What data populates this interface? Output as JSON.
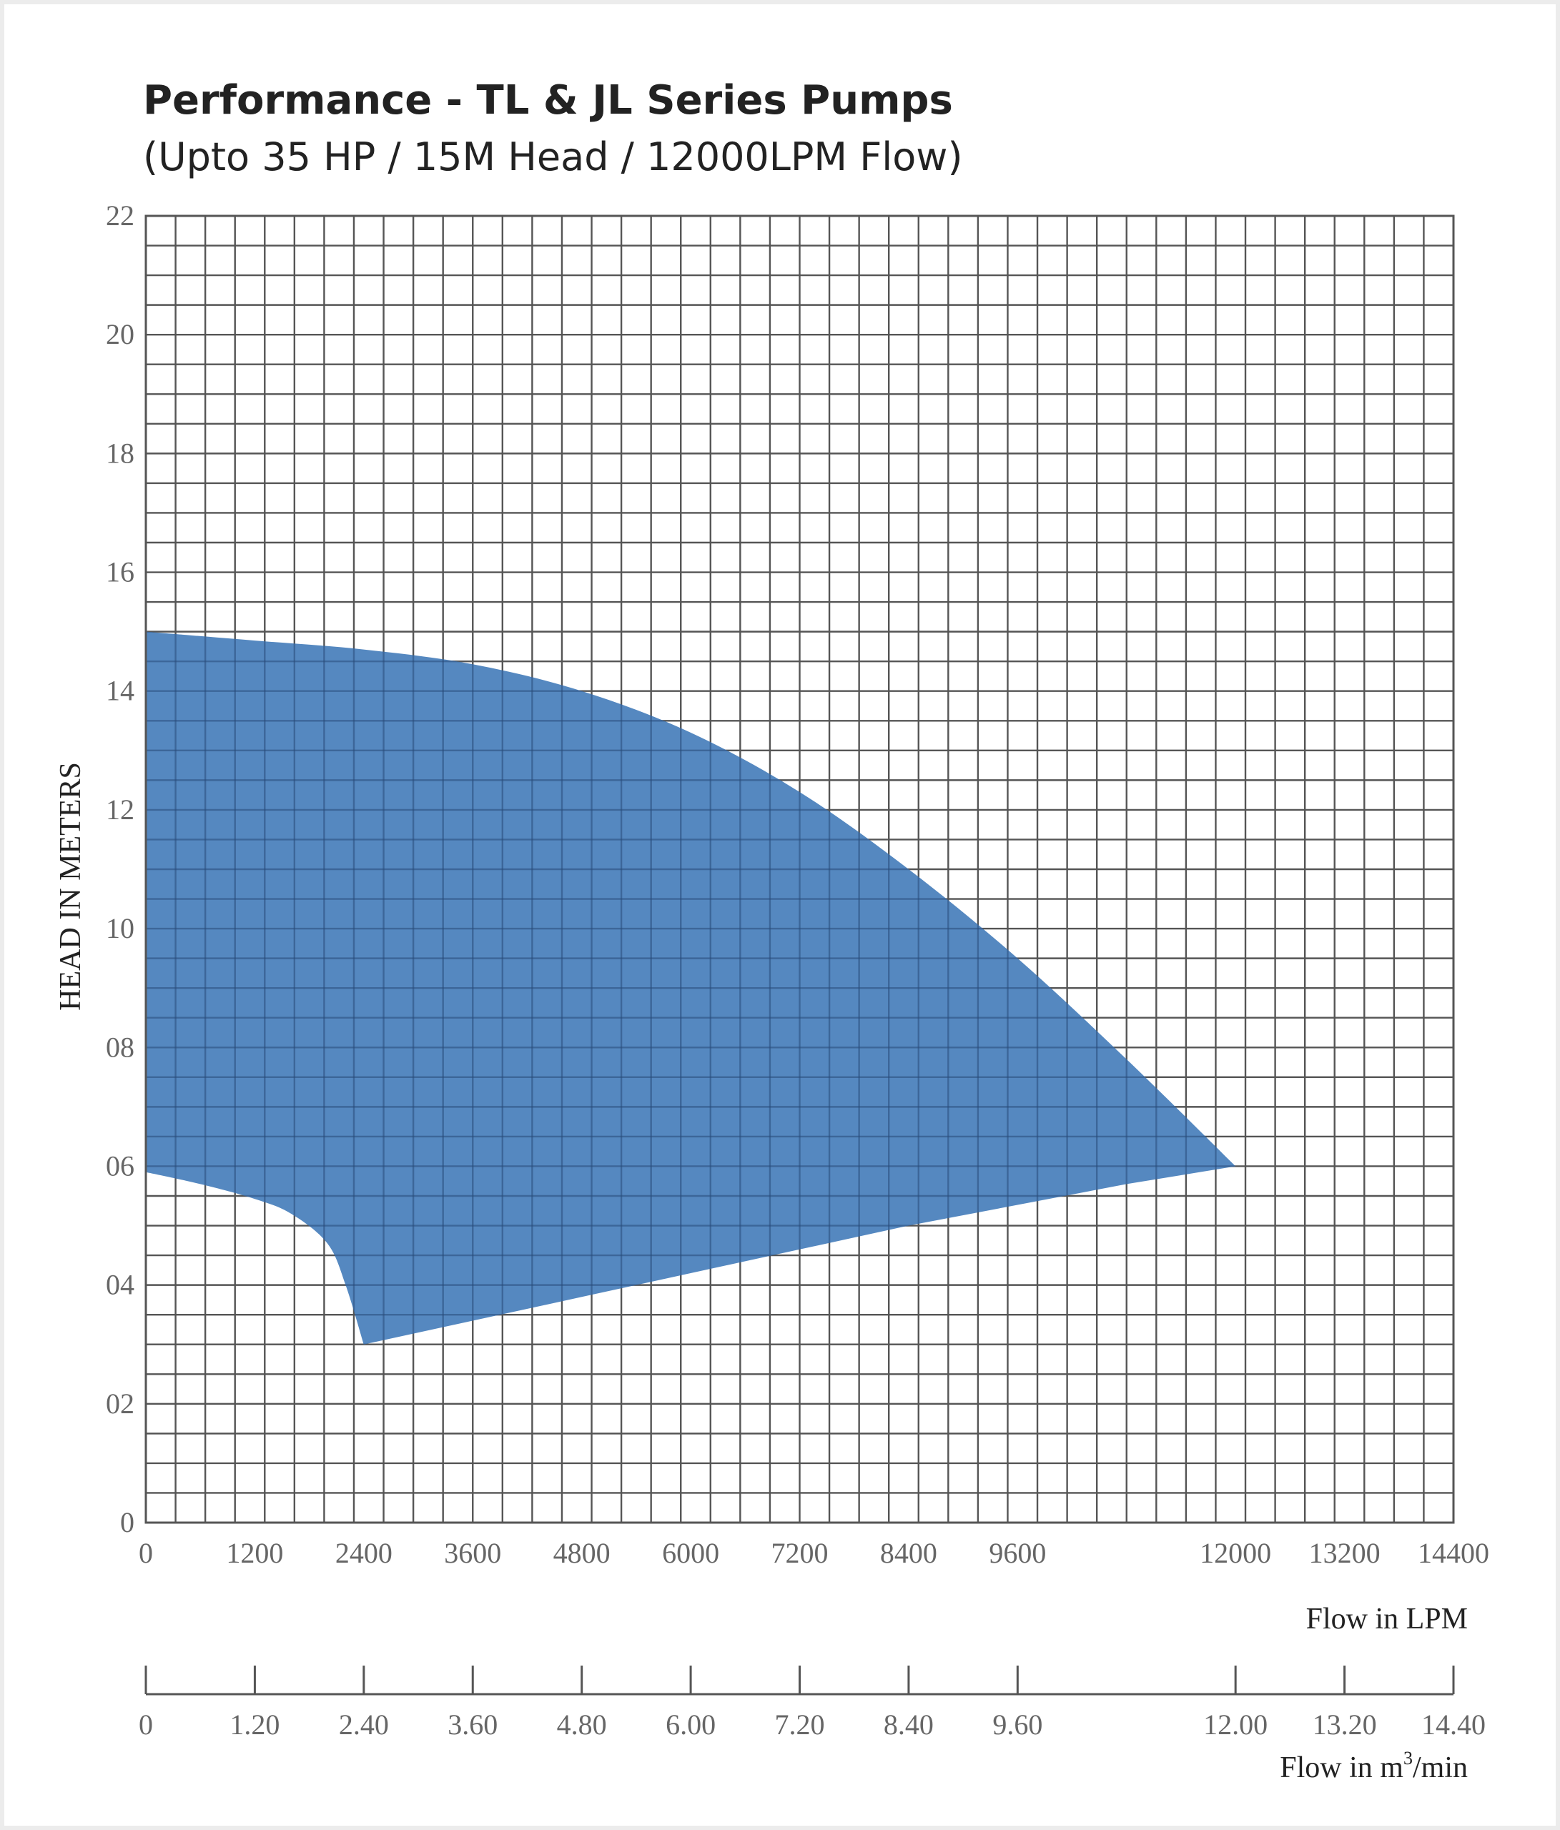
{
  "chart_data": {
    "type": "area",
    "title": "Performance - TL & JL Series Pumps",
    "subtitle": "(Upto 35 HP / 15M Head / 12000LPM Flow)",
    "xlabel": "Flow in LPM",
    "ylabel": "HEAD IN METERS",
    "secondary_xlabel_prefix": "Flow in m",
    "secondary_xlabel_sup": "3",
    "secondary_xlabel_suffix": "/min",
    "xlim": [
      0,
      14400
    ],
    "ylim": [
      0,
      22
    ],
    "grid": true,
    "x_ticks": [
      0,
      1200,
      2400,
      3600,
      4800,
      6000,
      7200,
      8400,
      9600,
      12000,
      13200,
      14400
    ],
    "x_tick_labels": [
      "0",
      "1200",
      "2400",
      "3600",
      "4800",
      "6000",
      "7200",
      "8400",
      "9600",
      "12000",
      "13200",
      "14400"
    ],
    "y_ticks": [
      0,
      2,
      4,
      6,
      8,
      10,
      12,
      14,
      16,
      18,
      20,
      22
    ],
    "y_tick_labels": [
      "0",
      "02",
      "04",
      "06",
      "08",
      "10",
      "12",
      "14",
      "16",
      "18",
      "20",
      "22"
    ],
    "secondary_x_ticks": [
      0,
      1200,
      2400,
      3600,
      4800,
      6000,
      7200,
      8400,
      9600,
      12000,
      13200,
      14400
    ],
    "secondary_x_tick_labels": [
      "0",
      "1.20",
      "2.40",
      "3.60",
      "4.80",
      "6.00",
      "7.20",
      "8.40",
      "9.60",
      "12.00",
      "13.20",
      "14.40"
    ],
    "region": {
      "color": "#5588c0",
      "upper": {
        "x": [
          0,
          1200,
          2400,
          3600,
          4800,
          6000,
          7200,
          8400,
          9600,
          10800,
          12000
        ],
        "y": [
          15.0,
          14.85,
          14.7,
          14.45,
          14.0,
          13.3,
          12.3,
          11.0,
          9.5,
          7.8,
          6.0
        ]
      },
      "lower": {
        "x": [
          0,
          600,
          1200,
          1600,
          2000,
          2200,
          2400,
          3600,
          4800,
          6000,
          7200,
          8400,
          9600,
          10800,
          12000
        ],
        "y": [
          5.9,
          5.7,
          5.45,
          5.2,
          4.7,
          4.0,
          3.0,
          3.4,
          3.8,
          4.2,
          4.6,
          5.0,
          5.35,
          5.7,
          6.0
        ]
      }
    }
  }
}
